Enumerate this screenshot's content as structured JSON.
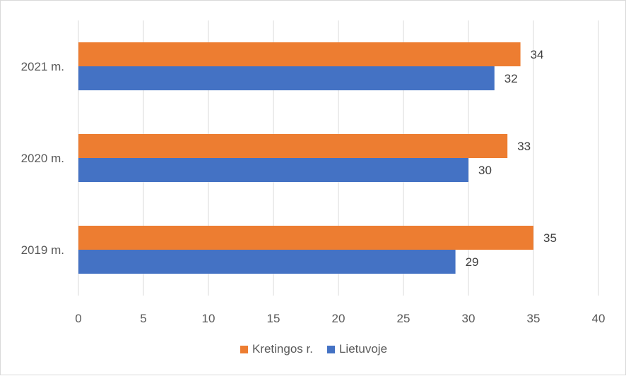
{
  "chart_data": {
    "type": "bar",
    "orientation": "horizontal",
    "categories": [
      "2019 m.",
      "2020 m.",
      "2021 m."
    ],
    "series": [
      {
        "name": "Kretingos r.",
        "values": [
          35,
          33,
          34
        ],
        "color": "#ED7D31"
      },
      {
        "name": "Lietuvoje",
        "values": [
          29,
          30,
          32
        ],
        "color": "#4472C4"
      }
    ],
    "xlim": [
      0,
      40
    ],
    "x_ticks": [
      0,
      5,
      10,
      15,
      20,
      25,
      30,
      35,
      40
    ],
    "grid": true,
    "legend_position": "bottom",
    "data_labels": true,
    "title": "",
    "xlabel": "",
    "ylabel": ""
  }
}
